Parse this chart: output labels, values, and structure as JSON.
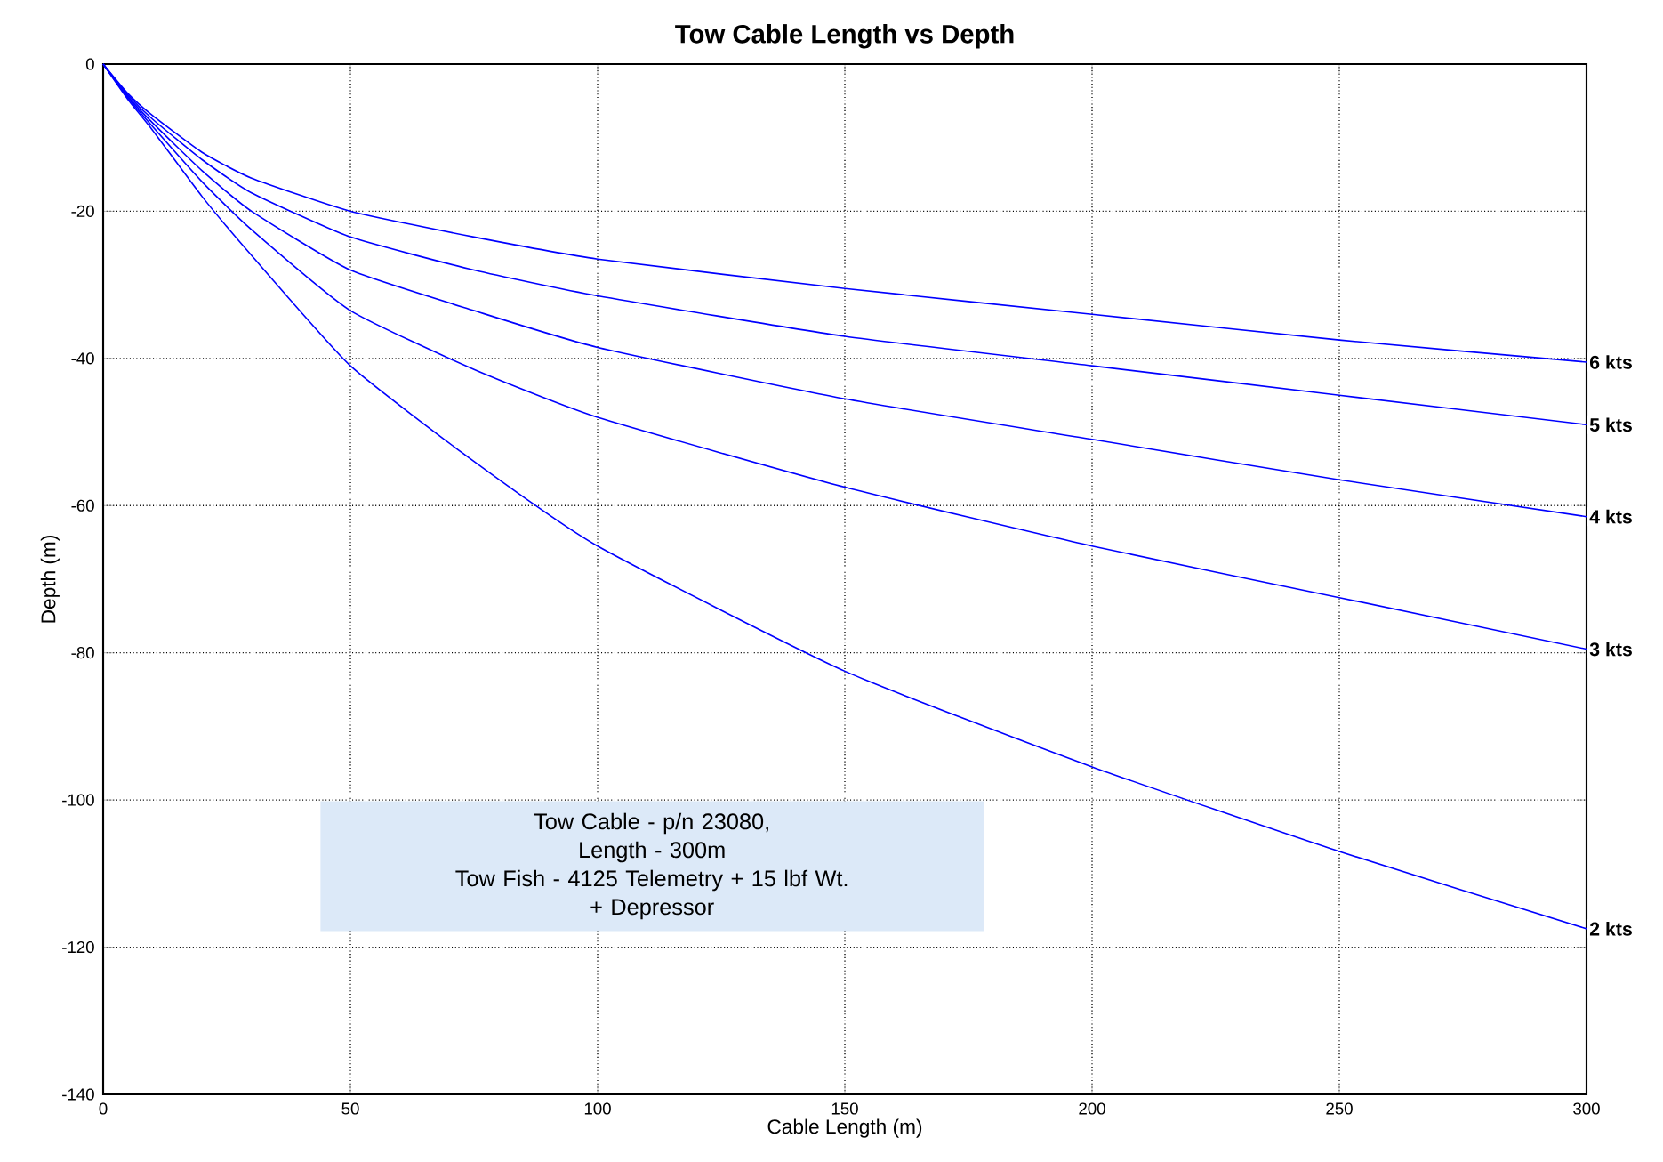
{
  "chart_data": {
    "type": "line",
    "title": "Tow Cable Length vs Depth",
    "xlabel": "Cable Length (m)",
    "ylabel": "Depth (m)",
    "xlim": [
      0,
      300
    ],
    "ylim": [
      -140,
      0
    ],
    "xticks": [
      0,
      50,
      100,
      150,
      200,
      250,
      300
    ],
    "yticks": [
      -140,
      -120,
      -100,
      -80,
      -60,
      -40,
      -20,
      0
    ],
    "grid": true,
    "line_style": "solid",
    "x": [
      0,
      5,
      10,
      20,
      30,
      50,
      75,
      100,
      150,
      200,
      250,
      300
    ],
    "series": [
      {
        "name": "6 kts",
        "color": "#0000ff",
        "values": [
          0,
          -4,
          -7,
          -12,
          -15.5,
          -20,
          -23.5,
          -26.5,
          -30.5,
          -34,
          -37.5,
          -40.5
        ]
      },
      {
        "name": "5 kts",
        "color": "#0000ff",
        "values": [
          0,
          -4.2,
          -7.5,
          -13,
          -17.5,
          -23.5,
          -28,
          -31.5,
          -37,
          -41,
          -45,
          -49
        ]
      },
      {
        "name": "4 kts",
        "color": "#0000ff",
        "values": [
          0,
          -4.4,
          -8,
          -14.5,
          -20,
          -28,
          -33.5,
          -38.5,
          -45.5,
          -51,
          -56.5,
          -61.5
        ]
      },
      {
        "name": "3 kts",
        "color": "#0000ff",
        "values": [
          0,
          -4.6,
          -8.5,
          -16,
          -22.5,
          -33.5,
          -41.5,
          -48,
          -57.5,
          -65.5,
          -72.5,
          -79.5
        ]
      },
      {
        "name": "2 kts",
        "color": "#0000ff",
        "values": [
          0,
          -4.8,
          -9,
          -18,
          -26,
          -41,
          -54,
          -65.5,
          -82.5,
          -95.5,
          -107,
          -117.5
        ]
      }
    ],
    "annotations": [
      "Tow Cable - p/n 23080,",
      "Length - 300m",
      "Tow Fish - 4125 Telemetry + 15 lbf Wt.",
      "+ Depressor"
    ]
  }
}
